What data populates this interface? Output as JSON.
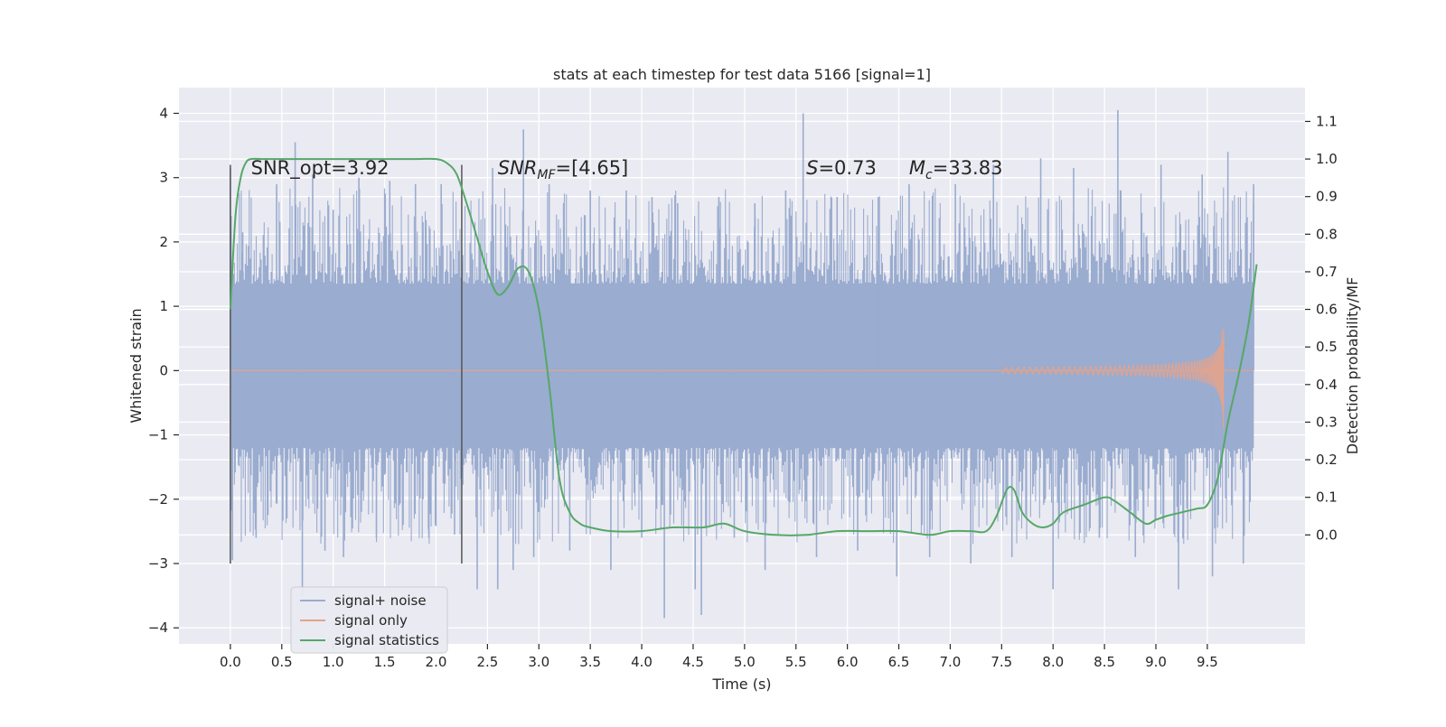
{
  "chart_data": {
    "type": "line",
    "title": "stats at each timestep for test data 5166 [signal=1]",
    "xlabel": "Time (s)",
    "ylabel": "Whitened strain",
    "y2label": "Detection probability/MF",
    "xlim": [
      -0.5,
      10.45
    ],
    "ylim": [
      -4.25,
      4.4
    ],
    "y2lim": [
      -0.29,
      1.19
    ],
    "x_ticks": [
      0.0,
      0.5,
      1.0,
      1.5,
      2.0,
      2.5,
      3.0,
      3.5,
      4.0,
      4.5,
      5.0,
      5.5,
      6.0,
      6.5,
      7.0,
      7.5,
      8.0,
      8.5,
      9.0,
      9.5
    ],
    "x_tick_labels": [
      "0.0",
      "0.5",
      "1.0",
      "1.5",
      "2.0",
      "2.5",
      "3.0",
      "3.5",
      "4.0",
      "4.5",
      "5.0",
      "5.5",
      "6.0",
      "6.5",
      "7.0",
      "7.5",
      "8.0",
      "8.5",
      "9.0",
      "9.5"
    ],
    "y_ticks": [
      4,
      3,
      2,
      1,
      0,
      -1,
      -2,
      -3,
      -4
    ],
    "y_tick_labels": [
      "4",
      "3",
      "2",
      "1",
      "0",
      "−1",
      "−2",
      "−3",
      "−4"
    ],
    "y2_ticks": [
      1.1,
      1.0,
      0.9,
      0.8,
      0.7,
      0.6,
      0.5,
      0.4,
      0.3,
      0.2,
      0.1,
      0.0
    ],
    "y2_tick_labels": [
      "1.1",
      "1.0",
      "0.9",
      "0.8",
      "0.7",
      "0.6",
      "0.5",
      "0.4",
      "0.3",
      "0.2",
      "0.1",
      "0.0"
    ],
    "grid": true,
    "legend_position": "lower-left",
    "annotations": [
      {
        "text": "SNR_opt=3.92",
        "x": 0.2,
        "y": 3.15
      },
      {
        "text": "SNR",
        "sub": "MF",
        "rest": "=[4.65]",
        "x": 2.6,
        "y": 3.15
      },
      {
        "text": "S",
        "rest": "=0.73",
        "x": 5.6,
        "y": 3.15
      },
      {
        "text": "M",
        "sub": "c",
        "rest": "=33.83",
        "x": 6.6,
        "y": 3.15
      }
    ],
    "vlines": [
      {
        "x": 0.0,
        "ymin": -3.0,
        "ymax": 3.2
      },
      {
        "x": 2.25,
        "ymin": -3.0,
        "ymax": 3.2
      }
    ],
    "noise_band": {
      "x_start": 0.0,
      "x_end": 9.95,
      "core_min": -1.2,
      "core_max": 1.35,
      "spike_max": 4.05,
      "spike_min": -3.85
    },
    "noise_spikes": [
      {
        "x": 0.0,
        "y": 3.15
      },
      {
        "x": 0.02,
        "y": -2.95
      },
      {
        "x": 0.12,
        "y": 2.15
      },
      {
        "x": 0.25,
        "y": -2.6
      },
      {
        "x": 0.45,
        "y": 2.9
      },
      {
        "x": 0.55,
        "y": -2.3
      },
      {
        "x": 0.63,
        "y": 3.55
      },
      {
        "x": 0.7,
        "y": -3.5
      },
      {
        "x": 0.8,
        "y": 3.05
      },
      {
        "x": 0.92,
        "y": -2.8
      },
      {
        "x": 1.0,
        "y": 2.5
      },
      {
        "x": 1.1,
        "y": -2.9
      },
      {
        "x": 1.25,
        "y": 3.0
      },
      {
        "x": 1.42,
        "y": -2.6
      },
      {
        "x": 1.55,
        "y": 2.95
      },
      {
        "x": 1.68,
        "y": -2.4
      },
      {
        "x": 1.8,
        "y": 2.9
      },
      {
        "x": 1.93,
        "y": -2.6
      },
      {
        "x": 2.05,
        "y": 2.9
      },
      {
        "x": 2.18,
        "y": -2.55
      },
      {
        "x": 2.4,
        "y": -3.4
      },
      {
        "x": 2.55,
        "y": 3.15
      },
      {
        "x": 2.6,
        "y": -3.4
      },
      {
        "x": 2.75,
        "y": -3.1
      },
      {
        "x": 2.85,
        "y": 3.75
      },
      {
        "x": 2.95,
        "y": -2.9
      },
      {
        "x": 3.1,
        "y": 2.9
      },
      {
        "x": 3.3,
        "y": -2.8
      },
      {
        "x": 3.5,
        "y": 2.8
      },
      {
        "x": 3.7,
        "y": -3.1
      },
      {
        "x": 3.85,
        "y": 2.8
      },
      {
        "x": 4.0,
        "y": -2.6
      },
      {
        "x": 4.1,
        "y": 2.7
      },
      {
        "x": 4.22,
        "y": -3.85
      },
      {
        "x": 4.35,
        "y": 2.6
      },
      {
        "x": 4.52,
        "y": -3.4
      },
      {
        "x": 4.58,
        "y": -3.8
      },
      {
        "x": 4.75,
        "y": 2.7
      },
      {
        "x": 4.9,
        "y": -2.6
      },
      {
        "x": 5.1,
        "y": 2.6
      },
      {
        "x": 5.2,
        "y": -3.1
      },
      {
        "x": 5.4,
        "y": 2.8
      },
      {
        "x": 5.57,
        "y": 4.0
      },
      {
        "x": 5.7,
        "y": -2.9
      },
      {
        "x": 5.9,
        "y": 2.7
      },
      {
        "x": 6.1,
        "y": -2.8
      },
      {
        "x": 6.3,
        "y": 2.7
      },
      {
        "x": 6.48,
        "y": -3.2
      },
      {
        "x": 6.6,
        "y": 2.9
      },
      {
        "x": 6.8,
        "y": -2.9
      },
      {
        "x": 7.05,
        "y": 2.9
      },
      {
        "x": 7.2,
        "y": -3.0
      },
      {
        "x": 7.42,
        "y": 3.2
      },
      {
        "x": 7.6,
        "y": -2.9
      },
      {
        "x": 7.88,
        "y": 3.3
      },
      {
        "x": 8.0,
        "y": -3.4
      },
      {
        "x": 8.2,
        "y": 3.15
      },
      {
        "x": 8.45,
        "y": -2.6
      },
      {
        "x": 8.63,
        "y": 4.05
      },
      {
        "x": 8.8,
        "y": -2.9
      },
      {
        "x": 9.05,
        "y": 3.2
      },
      {
        "x": 9.22,
        "y": -3.4
      },
      {
        "x": 9.45,
        "y": 3.05
      },
      {
        "x": 9.55,
        "y": -3.2
      },
      {
        "x": 9.7,
        "y": 3.4
      },
      {
        "x": 9.85,
        "y": -3.0
      },
      {
        "x": 9.95,
        "y": 2.9
      }
    ],
    "signal_only": {
      "x_start": 7.5,
      "x_end": 9.68,
      "base_amplitude": 0.05,
      "peak_amplitude": 0.9,
      "peak_x": 9.66
    },
    "series": [
      {
        "name": "signal+ noise",
        "color": "#9aaccf"
      },
      {
        "name": "signal only",
        "color": "#e6a38b"
      },
      {
        "name": "signal statistics",
        "color": "#55a868",
        "x": [
          0.0,
          0.05,
          0.1,
          0.15,
          0.2,
          0.3,
          0.5,
          1.0,
          1.5,
          1.8,
          2.0,
          2.1,
          2.2,
          2.3,
          2.4,
          2.5,
          2.6,
          2.7,
          2.8,
          2.9,
          3.0,
          3.1,
          3.2,
          3.3,
          3.4,
          3.5,
          3.7,
          4.0,
          4.3,
          4.6,
          4.8,
          5.0,
          5.3,
          5.6,
          5.9,
          6.2,
          6.5,
          6.8,
          7.0,
          7.2,
          7.35,
          7.45,
          7.55,
          7.62,
          7.7,
          7.8,
          7.9,
          8.0,
          8.1,
          8.3,
          8.5,
          8.6,
          8.75,
          8.9,
          9.0,
          9.1,
          9.25,
          9.4,
          9.5,
          9.6,
          9.7,
          9.8,
          9.9,
          9.98
        ],
        "y": [
          0.6,
          0.85,
          0.95,
          0.99,
          1.0,
          1.0,
          1.0,
          1.0,
          1.0,
          1.0,
          1.0,
          0.99,
          0.96,
          0.88,
          0.79,
          0.7,
          0.64,
          0.66,
          0.71,
          0.7,
          0.6,
          0.4,
          0.15,
          0.06,
          0.03,
          0.02,
          0.01,
          0.01,
          0.02,
          0.02,
          0.03,
          0.01,
          0.0,
          0.0,
          0.01,
          0.01,
          0.01,
          0.0,
          0.01,
          0.01,
          0.01,
          0.05,
          0.12,
          0.12,
          0.06,
          0.03,
          0.02,
          0.03,
          0.06,
          0.08,
          0.1,
          0.09,
          0.06,
          0.03,
          0.04,
          0.05,
          0.06,
          0.07,
          0.08,
          0.15,
          0.3,
          0.42,
          0.56,
          0.72
        ]
      }
    ]
  }
}
